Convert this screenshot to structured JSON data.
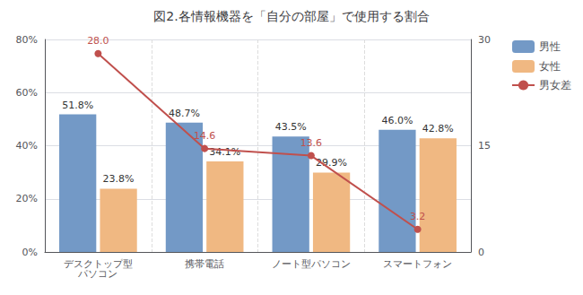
{
  "chart_data": {
    "type": "bar",
    "title": "図2.各情報機器を「自分の部屋」で使用する割合",
    "categories": [
      "デスクトップ型\nパソコン",
      "携帯電話",
      "ノート型パソコン",
      "スマートフォン"
    ],
    "series": [
      {
        "name": "男性",
        "color": "#7399C6",
        "values": [
          51.8,
          48.7,
          43.5,
          46.0
        ],
        "value_labels": [
          "51.8%",
          "48.7%",
          "43.5%",
          "46.0%"
        ]
      },
      {
        "name": "女性",
        "color": "#F0B882",
        "values": [
          23.8,
          34.1,
          29.9,
          42.8
        ],
        "value_labels": [
          "23.8%",
          "34.1%",
          "29.9%",
          "42.8%"
        ]
      },
      {
        "name": "男女差",
        "type": "line",
        "axis": "y2",
        "marker": "circle",
        "color": "#C0504D",
        "values": [
          28.0,
          14.6,
          13.6,
          3.2
        ],
        "value_labels": [
          "28.0",
          "14.6",
          "13.6",
          "3.2"
        ]
      }
    ],
    "ylim": [
      0,
      80
    ],
    "yticks": [
      {
        "value": 0,
        "label": "0%"
      },
      {
        "value": 20,
        "label": "20%"
      },
      {
        "value": 40,
        "label": "40%"
      },
      {
        "value": 60,
        "label": "60%"
      },
      {
        "value": 80,
        "label": "80%"
      }
    ],
    "y2lim": [
      0,
      30
    ],
    "y2ticks": [
      0,
      15,
      30
    ],
    "grid": true,
    "legend": "upper right",
    "data_labels": true
  }
}
